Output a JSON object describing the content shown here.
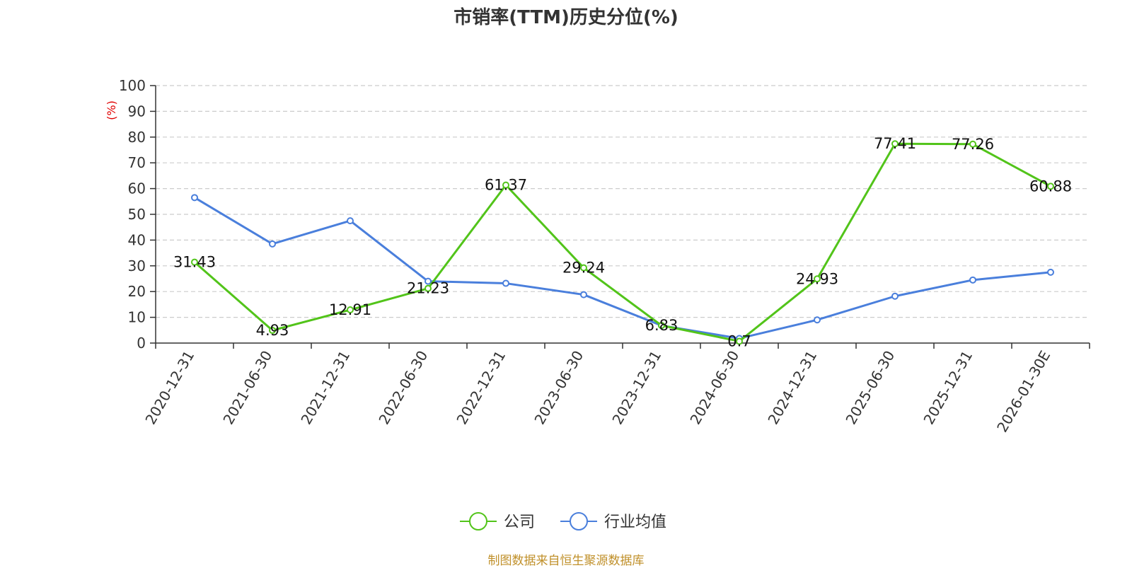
{
  "chart_data": {
    "type": "line",
    "title": "市销率(TTM)历史分位(%)",
    "ylabel": "(%)",
    "xlabel": "",
    "ylim": [
      0,
      100
    ],
    "yticks": [
      0,
      10,
      20,
      30,
      40,
      50,
      60,
      70,
      80,
      90,
      100
    ],
    "grid": true,
    "legend_position": "bottom-center",
    "categories": [
      "2020-12-31",
      "2021-06-30",
      "2021-12-31",
      "2022-06-30",
      "2022-12-31",
      "2023-06-30",
      "2023-12-31",
      "2024-06-30",
      "2024-12-31",
      "2025-06-30",
      "2025-12-31",
      "2026-01-30E"
    ],
    "series": [
      {
        "name": "公司",
        "color": "#52c41a",
        "show_labels": true,
        "values": [
          31.43,
          4.93,
          12.91,
          21.23,
          61.37,
          29.24,
          6.83,
          0.7,
          24.93,
          77.41,
          77.26,
          60.88
        ]
      },
      {
        "name": "行业均值",
        "color": "#4a7fdc",
        "show_labels": false,
        "values": [
          56.5,
          38.5,
          47.5,
          24.0,
          23.2,
          18.8,
          6.8,
          1.8,
          9.0,
          18.2,
          24.5,
          27.5
        ]
      }
    ],
    "source_note": "制图数据来自恒生聚源数据库"
  }
}
